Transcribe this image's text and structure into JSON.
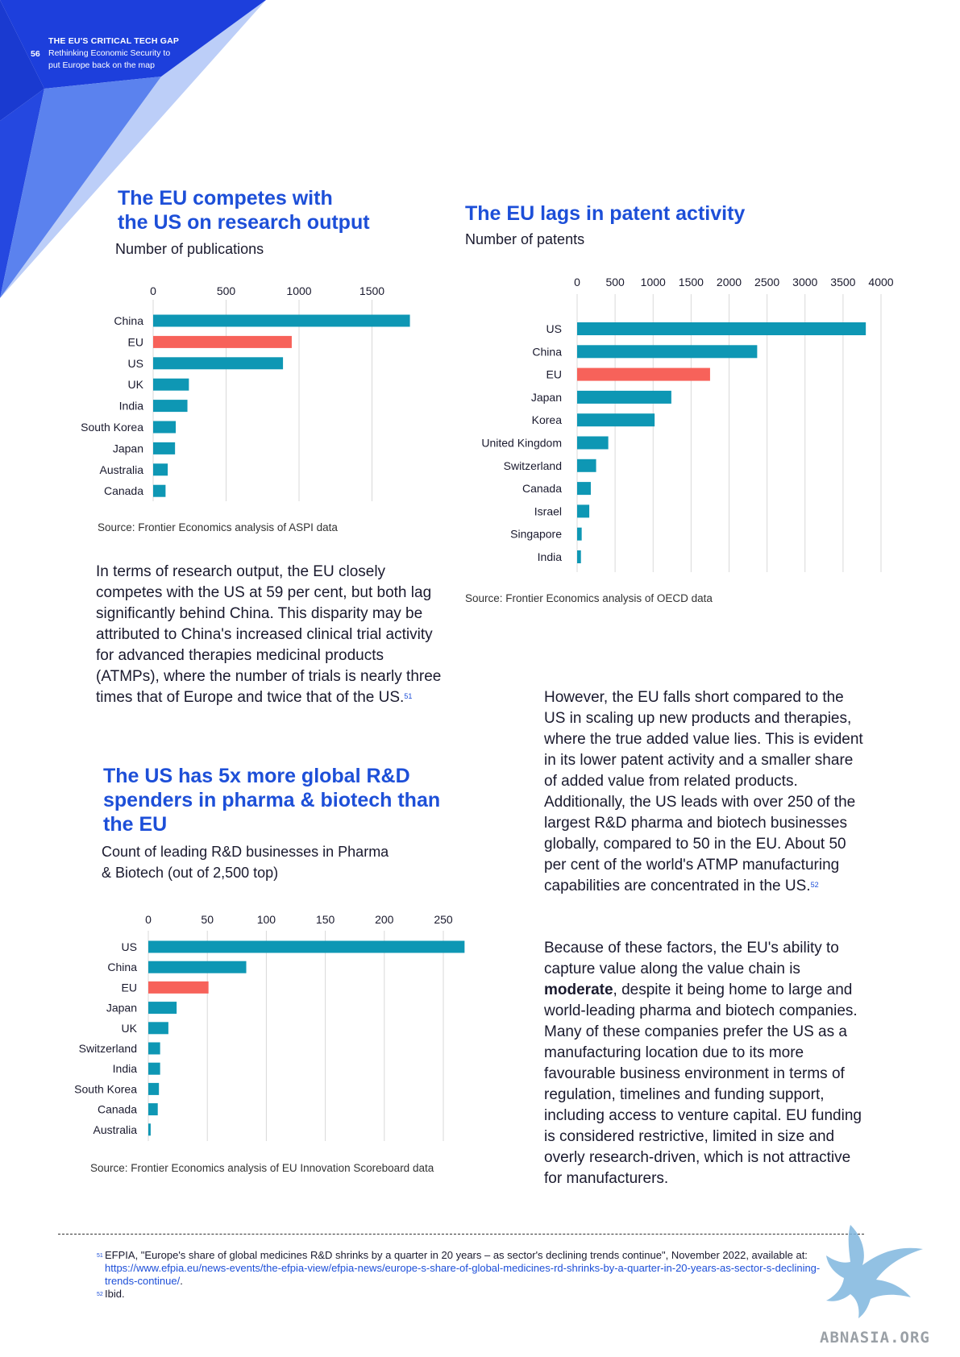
{
  "header": {
    "page_number": "56",
    "line1": "THE EU'S CRITICAL TECH GAP",
    "line2": "Rethinking Economic Security to",
    "line3": "put Europe back on the map"
  },
  "colors": {
    "teal": "#0e97b4",
    "coral": "#f7625a",
    "blue": "#1d4fd8"
  },
  "charts": {
    "research": {
      "title_line1": "The EU competes with",
      "title_line2": "the US on research output",
      "subtitle": "Number of publications",
      "source": "Source: Frontier Economics analysis of ASPI data"
    },
    "patents": {
      "title": "The EU lags in patent activity",
      "subtitle": "Number of patents",
      "source": "Source: Frontier Economics analysis of OECD data"
    },
    "rnd": {
      "title_line1": "The US has 5x more global R&D",
      "title_line2": "spenders in pharma & biotech than",
      "title_line3": "the EU",
      "subtitle_line1": "Count of leading R&D businesses in Pharma",
      "subtitle_line2": "& Biotech (out of 2,500 top)",
      "source": "Source: Frontier Economics analysis of EU Innovation Scoreboard data"
    }
  },
  "chart_data": [
    {
      "type": "bar",
      "orientation": "horizontal",
      "title": "The EU competes with the US on research output",
      "subtitle": "Number of publications",
      "categories": [
        "China",
        "EU",
        "US",
        "UK",
        "India",
        "South Korea",
        "Japan",
        "Australia",
        "Canada"
      ],
      "values": [
        1760,
        950,
        890,
        245,
        235,
        155,
        150,
        100,
        85
      ],
      "highlight": "EU",
      "xticks": [
        0,
        500,
        1000,
        1500
      ],
      "xlim": [
        0,
        1800
      ],
      "grid": true
    },
    {
      "type": "bar",
      "orientation": "horizontal",
      "title": "The EU lags in patent activity",
      "subtitle": "Number of patents",
      "categories": [
        "US",
        "China",
        "EU",
        "Japan",
        "Korea",
        "United Kingdom",
        "Switzerland",
        "Canada",
        "Israel",
        "Singapore",
        "India"
      ],
      "values": [
        3800,
        2370,
        1750,
        1240,
        1020,
        410,
        250,
        180,
        160,
        60,
        50
      ],
      "highlight": "EU",
      "xticks": [
        0,
        500,
        1000,
        1500,
        2000,
        2500,
        3000,
        3500,
        4000
      ],
      "xlim": [
        0,
        4000
      ],
      "grid": true
    },
    {
      "type": "bar",
      "orientation": "horizontal",
      "title": "The US has 5x more global R&D spenders in pharma & biotech than the EU",
      "subtitle": "Count of leading R&D businesses in Pharma & Biotech (out of 2,500 top)",
      "categories": [
        "US",
        "China",
        "EU",
        "Japan",
        "UK",
        "Switzerland",
        "India",
        "South Korea",
        "Canada",
        "Australia"
      ],
      "values": [
        268,
        83,
        51,
        24,
        17,
        10,
        10,
        9,
        8,
        2
      ],
      "highlight": "EU",
      "xticks": [
        0,
        50,
        100,
        150,
        200,
        250
      ],
      "xlim": [
        0,
        270
      ],
      "grid": true
    }
  ],
  "paragraph1": {
    "text": "In terms of research output, the EU closely competes with the US at 59 per cent, but both lag significantly behind China. This disparity may be attributed to China's increased clinical trial activity for advanced therapies medicinal products (ATMPs), where the number of trials is nearly three times that of Europe and twice that of the US.",
    "ref": "51"
  },
  "paragraph2": {
    "text": "However, the EU falls short compared to the US in scaling up new products and therapies, where the true added value lies. This is evident in its lower patent activity and a smaller share of added value from related products. Additionally, the US leads with over 250 of the largest R&D pharma and biotech businesses globally, compared to 50 in the EU. About 50 per cent of the world's ATMP manufacturing capabilities are concentrated in the US.",
    "ref": "52"
  },
  "paragraph3": {
    "before": "Because of these factors, the EU's ability to capture value along the value chain is ",
    "bold": "moderate",
    "after": ", despite it being home to large and world-leading pharma and biotech companies. Many of these companies prefer the US as a manufacturing location due to its more favourable business environment in terms of regulation, timelines and funding support, including access to venture capital. EU funding is considered restrictive, limited in size and overly research-driven, which is not attractive for manufacturers."
  },
  "footnotes": {
    "fn51_ref": "51",
    "fn51_text": "EFPIA, \"Europe's share of global medicines R&D shrinks by a quarter in 20 years – as sector's declining trends continue\", November 2022, available at: ",
    "fn51_url": "https://www.efpia.eu/news-events/the-efpia-view/efpia-news/europe-s-share-of-global-medicines-rd-shrinks-by-a-quarter-in-20-years-as-sector-s-declining-trends-continue/",
    "fn51_end": ".",
    "fn52_ref": "52",
    "fn52_text": "Ibid."
  },
  "watermark": {
    "text": "ABNASIA.ORG",
    "icon": "griffin-logo-icon"
  }
}
